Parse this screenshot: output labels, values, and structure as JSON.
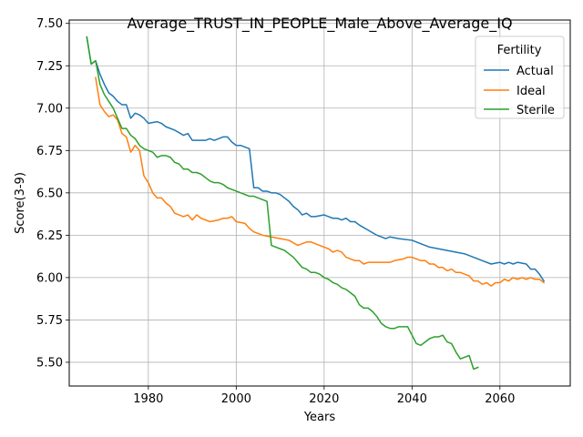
{
  "chart_data": {
    "type": "line",
    "title": "Average_TRUST_IN_PEOPLE_Male_Above_Average_IQ",
    "xlabel": "Years",
    "ylabel": "Score(3-9)",
    "xlim": [
      1962,
      2076
    ],
    "ylim": [
      5.36,
      7.52
    ],
    "xticks": [
      1980,
      2000,
      2020,
      2040,
      2060
    ],
    "yticks": [
      5.5,
      5.75,
      6.0,
      6.25,
      6.5,
      6.75,
      7.0,
      7.25,
      7.5
    ],
    "ytick_labels": [
      "5.50",
      "5.75",
      "6.00",
      "6.25",
      "6.50",
      "6.75",
      "7.00",
      "7.25",
      "7.50"
    ],
    "xtick_labels": [
      "1980",
      "2000",
      "2020",
      "2040",
      "2060"
    ],
    "grid": true,
    "legend": {
      "title": "Fertility",
      "location": "top-right",
      "labels": [
        "Actual",
        "Ideal",
        "Sterile"
      ]
    },
    "series": [
      {
        "name": "Actual",
        "color": "#1f77b4",
        "x": [
          1966,
          1967,
          1968,
          1969,
          1970,
          1971,
          1972,
          1973,
          1974,
          1975,
          1976,
          1977,
          1978,
          1979,
          1980,
          1982,
          1983,
          1984,
          1986,
          1988,
          1989,
          1990,
          1993,
          1994,
          1995,
          1997,
          1998,
          1999,
          2000,
          2001,
          2002,
          2003,
          2004,
          2005,
          2006,
          2007,
          2008,
          2009,
          2010,
          2011,
          2012,
          2013,
          2014,
          2015,
          2016,
          2017,
          2018,
          2020,
          2021,
          2022,
          2023,
          2024,
          2025,
          2026,
          2027,
          2028,
          2030,
          2032,
          2034,
          2035,
          2037,
          2040,
          2042,
          2044,
          2046,
          2048,
          2050,
          2052,
          2054,
          2056,
          2058,
          2060,
          2061,
          2062,
          2063,
          2064,
          2066,
          2067,
          2068,
          2069,
          2070
        ],
        "values": [
          7.42,
          7.26,
          7.28,
          7.2,
          7.14,
          7.09,
          7.07,
          7.04,
          7.02,
          7.02,
          6.94,
          6.97,
          6.96,
          6.94,
          6.91,
          6.92,
          6.91,
          6.89,
          6.87,
          6.84,
          6.85,
          6.81,
          6.81,
          6.82,
          6.81,
          6.83,
          6.83,
          6.8,
          6.78,
          6.78,
          6.77,
          6.76,
          6.53,
          6.53,
          6.51,
          6.51,
          6.5,
          6.5,
          6.49,
          6.47,
          6.45,
          6.42,
          6.4,
          6.37,
          6.38,
          6.36,
          6.36,
          6.37,
          6.36,
          6.35,
          6.35,
          6.34,
          6.35,
          6.33,
          6.33,
          6.31,
          6.28,
          6.25,
          6.23,
          6.24,
          6.23,
          6.22,
          6.2,
          6.18,
          6.17,
          6.16,
          6.15,
          6.14,
          6.12,
          6.1,
          6.08,
          6.09,
          6.08,
          6.09,
          6.08,
          6.09,
          6.08,
          6.05,
          6.05,
          6.02,
          5.98
        ]
      },
      {
        "name": "Ideal",
        "color": "#ff7f0e",
        "x": [
          1968,
          1969,
          1970,
          1971,
          1972,
          1973,
          1974,
          1975,
          1976,
          1977,
          1978,
          1979,
          1980,
          1981,
          1982,
          1983,
          1984,
          1985,
          1986,
          1988,
          1989,
          1990,
          1991,
          1992,
          1994,
          1996,
          1997,
          1998,
          1999,
          2000,
          2002,
          2003,
          2004,
          2006,
          2008,
          2010,
          2012,
          2014,
          2015,
          2016,
          2017,
          2018,
          2020,
          2021,
          2022,
          2023,
          2024,
          2025,
          2026,
          2027,
          2028,
          2029,
          2030,
          2032,
          2034,
          2035,
          2036,
          2038,
          2039,
          2040,
          2041,
          2042,
          2043,
          2044,
          2045,
          2046,
          2047,
          2048,
          2049,
          2050,
          2051,
          2052,
          2053,
          2054,
          2055,
          2056,
          2057,
          2058,
          2059,
          2060,
          2061,
          2062,
          2063,
          2064,
          2065,
          2066,
          2067,
          2068,
          2069,
          2070
        ],
        "values": [
          7.18,
          7.02,
          6.98,
          6.95,
          6.96,
          6.93,
          6.85,
          6.83,
          6.74,
          6.78,
          6.75,
          6.6,
          6.56,
          6.5,
          6.47,
          6.47,
          6.44,
          6.42,
          6.38,
          6.36,
          6.37,
          6.34,
          6.37,
          6.35,
          6.33,
          6.34,
          6.35,
          6.35,
          6.36,
          6.33,
          6.32,
          6.29,
          6.27,
          6.25,
          6.24,
          6.23,
          6.22,
          6.19,
          6.2,
          6.21,
          6.21,
          6.2,
          6.18,
          6.17,
          6.15,
          6.16,
          6.15,
          6.12,
          6.11,
          6.1,
          6.1,
          6.08,
          6.09,
          6.09,
          6.09,
          6.09,
          6.1,
          6.11,
          6.12,
          6.12,
          6.11,
          6.1,
          6.1,
          6.08,
          6.08,
          6.06,
          6.06,
          6.04,
          6.05,
          6.03,
          6.03,
          6.02,
          6.01,
          5.98,
          5.98,
          5.96,
          5.97,
          5.95,
          5.97,
          5.97,
          5.99,
          5.98,
          6.0,
          5.99,
          6.0,
          5.99,
          6.0,
          5.99,
          5.99,
          5.97
        ]
      },
      {
        "name": "Sterile",
        "color": "#2ca02c",
        "x": [
          1966,
          1967,
          1968,
          1969,
          1970,
          1971,
          1972,
          1973,
          1974,
          1975,
          1976,
          1977,
          1978,
          1979,
          1980,
          1981,
          1982,
          1983,
          1984,
          1985,
          1986,
          1987,
          1988,
          1989,
          1990,
          1991,
          1992,
          1993,
          1994,
          1995,
          1996,
          1997,
          1998,
          1999,
          2000,
          2001,
          2002,
          2003,
          2004,
          2005,
          2006,
          2007,
          2008,
          2009,
          2010,
          2011,
          2012,
          2013,
          2014,
          2015,
          2016,
          2017,
          2018,
          2019,
          2020,
          2021,
          2022,
          2023,
          2024,
          2025,
          2026,
          2027,
          2028,
          2029,
          2030,
          2031,
          2032,
          2033,
          2034,
          2035,
          2036,
          2037,
          2038,
          2039,
          2040,
          2041,
          2042,
          2043,
          2044,
          2045,
          2046,
          2047,
          2048,
          2049,
          2050,
          2051,
          2052,
          2053,
          2054,
          2055
        ],
        "values": [
          7.42,
          7.26,
          7.28,
          7.14,
          7.08,
          7.04,
          7.0,
          6.94,
          6.88,
          6.88,
          6.84,
          6.82,
          6.78,
          6.76,
          6.75,
          6.74,
          6.71,
          6.72,
          6.72,
          6.71,
          6.68,
          6.67,
          6.64,
          6.64,
          6.62,
          6.62,
          6.61,
          6.59,
          6.57,
          6.56,
          6.56,
          6.55,
          6.53,
          6.52,
          6.51,
          6.5,
          6.49,
          6.48,
          6.48,
          6.47,
          6.46,
          6.45,
          6.19,
          6.18,
          6.17,
          6.16,
          6.14,
          6.12,
          6.09,
          6.06,
          6.05,
          6.03,
          6.03,
          6.02,
          6.0,
          5.99,
          5.97,
          5.96,
          5.94,
          5.93,
          5.91,
          5.89,
          5.84,
          5.82,
          5.82,
          5.8,
          5.77,
          5.73,
          5.71,
          5.7,
          5.7,
          5.71,
          5.71,
          5.71,
          5.66,
          5.61,
          5.6,
          5.62,
          5.64,
          5.65,
          5.65,
          5.66,
          5.62,
          5.61,
          5.56,
          5.52,
          5.53,
          5.54,
          5.46,
          5.47
        ]
      }
    ]
  }
}
